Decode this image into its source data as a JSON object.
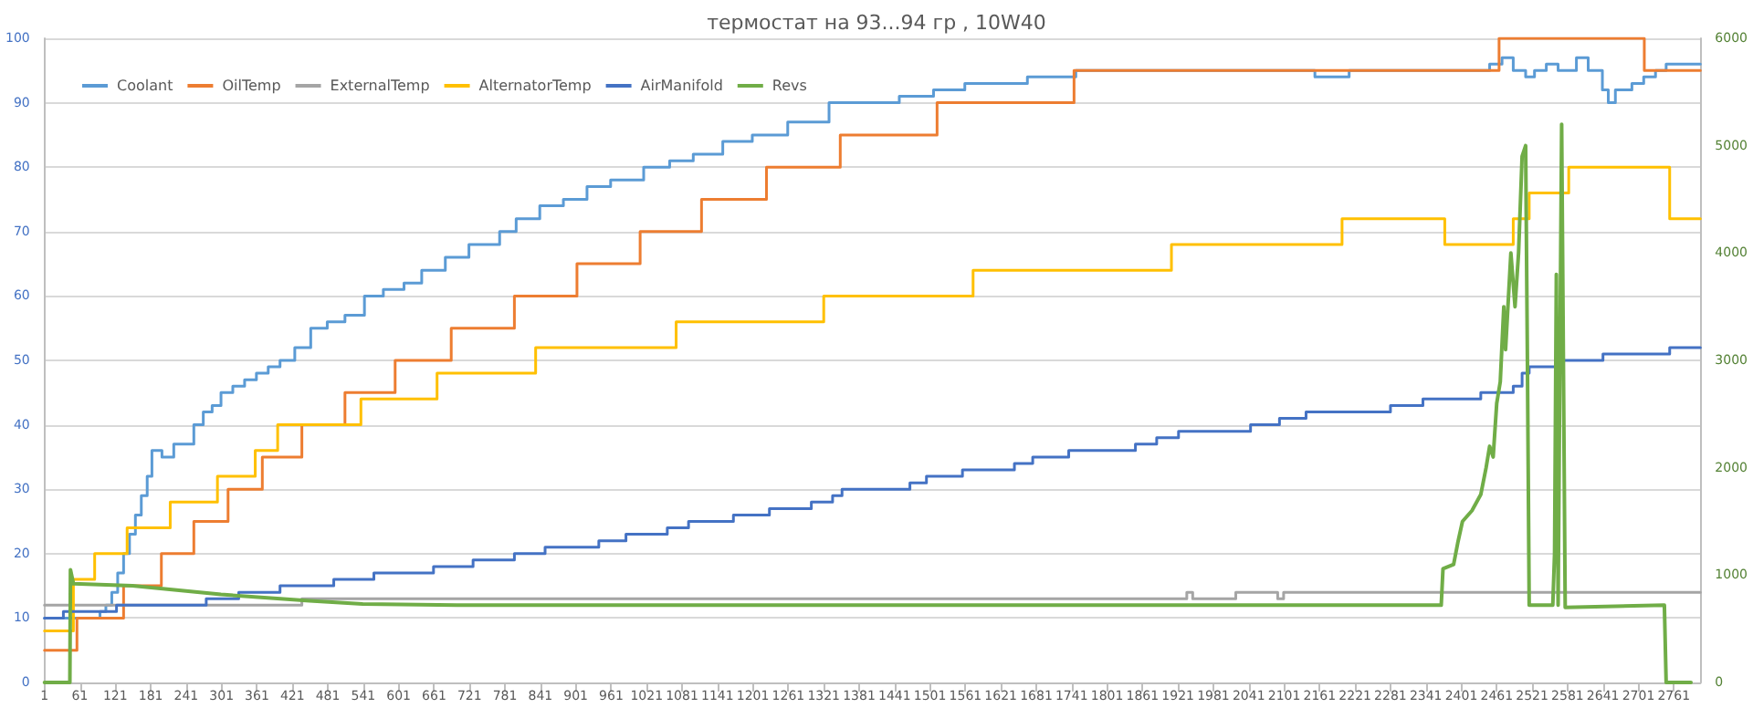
{
  "chart_data": {
    "type": "step",
    "title": "термостат на 93...94 гр , 10W40",
    "xlim": [
      1,
      2806
    ],
    "xticks": [
      1,
      61,
      121,
      181,
      241,
      301,
      361,
      421,
      481,
      541,
      601,
      661,
      721,
      781,
      841,
      901,
      961,
      1021,
      1081,
      1141,
      1201,
      1261,
      1321,
      1381,
      1441,
      1501,
      1561,
      1621,
      1681,
      1741,
      1801,
      1861,
      1921,
      1981,
      2041,
      2101,
      2161,
      2221,
      2281,
      2341,
      2401,
      2461,
      2521,
      2581,
      2641,
      2701,
      2761
    ],
    "ylim": [
      0,
      100
    ],
    "yticks": [
      0,
      10,
      20,
      30,
      40,
      50,
      60,
      70,
      80,
      90,
      100
    ],
    "y2lim": [
      0,
      6000
    ],
    "y2ticks": [
      0,
      1000,
      2000,
      3000,
      4000,
      5000,
      6000
    ],
    "grid": "y",
    "legend": "top left",
    "marker": "none",
    "line_style": "solid",
    "series": [
      {
        "name": "Coolant",
        "color": "#5b9bd5",
        "x": [
          1,
          95,
          105,
          115,
          125,
          135,
          145,
          155,
          165,
          175,
          183,
          200,
          220,
          254,
          270,
          285,
          300,
          320,
          340,
          360,
          380,
          400,
          425,
          452,
          480,
          510,
          543,
          575,
          610,
          640,
          680,
          720,
          772,
          800,
          840,
          880,
          920,
          960,
          1016,
          1060,
          1100,
          1150,
          1200,
          1260,
          1330,
          1449,
          1507,
          1560,
          1666,
          1748,
          2153,
          2211,
          2449,
          2470,
          2489,
          2510,
          2525,
          2545,
          2565,
          2596,
          2616,
          2640,
          2650,
          2662,
          2690,
          2710,
          2730,
          2748,
          2806
        ],
        "values": [
          10,
          11,
          12,
          14,
          17,
          20,
          23,
          26,
          29,
          32,
          36,
          35,
          37,
          40,
          42,
          43,
          45,
          46,
          47,
          48,
          49,
          50,
          52,
          55,
          56,
          57,
          60,
          61,
          62,
          64,
          66,
          68,
          70,
          72,
          74,
          75,
          77,
          78,
          80,
          81,
          82,
          84,
          85,
          87,
          90,
          91,
          92,
          93,
          94,
          95,
          94,
          95,
          96,
          97,
          95,
          94,
          95,
          96,
          95,
          97,
          95,
          92,
          90,
          92,
          93,
          94,
          95,
          96,
          96
        ]
      },
      {
        "name": "OilTemp",
        "color": "#ed7d31",
        "x": [
          1,
          56,
          135,
          199,
          254,
          312,
          370,
          437,
          510,
          595,
          690,
          797,
          903,
          1010,
          1114,
          1224,
          1349,
          1513,
          1745,
          2465,
          2711,
          2806
        ],
        "values": [
          5,
          10,
          15,
          20,
          25,
          30,
          35,
          40,
          45,
          50,
          55,
          60,
          65,
          70,
          75,
          80,
          85,
          90,
          95,
          100,
          95,
          95
        ]
      },
      {
        "name": "ExternalTemp",
        "color": "#a5a5a5",
        "x": [
          1,
          437,
          1936,
          1946,
          2019,
          2090,
          2100,
          2806
        ],
        "values": [
          12,
          13,
          14,
          13,
          14,
          13,
          14,
          14
        ]
      },
      {
        "name": "AlternatorTemp",
        "color": "#ffc000",
        "x": [
          1,
          50,
          86,
          141,
          214,
          294,
          358,
          396,
          537,
          666,
          833,
          1071,
          1321,
          1574,
          1910,
          2199,
          2373,
          2489,
          2516,
          2583,
          2754,
          2806
        ],
        "values": [
          8,
          16,
          20,
          24,
          28,
          32,
          36,
          40,
          44,
          48,
          52,
          56,
          60,
          64,
          68,
          72,
          68,
          72,
          76,
          80,
          72,
          72
        ]
      },
      {
        "name": "AirManifold",
        "color": "#4472c4",
        "x": [
          1,
          33,
          123,
          275,
          330,
          400,
          491,
          559,
          660,
          727,
          797,
          849,
          940,
          986,
          1056,
          1092,
          1168,
          1229,
          1300,
          1336,
          1352,
          1467,
          1495,
          1556,
          1644,
          1675,
          1736,
          1849,
          1885,
          1922,
          2044,
          2093,
          2138,
          2281,
          2336,
          2434,
          2489,
          2504,
          2516,
          2571,
          2641,
          2754,
          2806
        ],
        "values": [
          10,
          11,
          12,
          13,
          14,
          15,
          16,
          17,
          18,
          19,
          20,
          21,
          22,
          23,
          24,
          25,
          26,
          27,
          28,
          29,
          30,
          31,
          32,
          33,
          34,
          35,
          36,
          37,
          38,
          39,
          40,
          41,
          42,
          43,
          44,
          45,
          46,
          48,
          49,
          50,
          51,
          52,
          52
        ]
      },
      {
        "name": "Revs",
        "color": "#70ad47",
        "type": "line",
        "axis": "y2",
        "x": [
          1,
          44,
          45,
          50,
          150,
          300,
          450,
          540,
          700,
          2367,
          2370,
          2388,
          2395,
          2403,
          2419,
          2434,
          2443,
          2449,
          2455,
          2461,
          2467,
          2473,
          2476,
          2485,
          2492,
          2498,
          2504,
          2510,
          2513,
          2516,
          2556,
          2559,
          2562,
          2565,
          2571,
          2577,
          2745,
          2748,
          2790
        ],
        "values": [
          0,
          0,
          1050,
          920,
          900,
          820,
          760,
          730,
          720,
          720,
          1060,
          1100,
          1300,
          1500,
          1600,
          1750,
          2000,
          2200,
          2100,
          2600,
          2800,
          3500,
          3100,
          4000,
          3500,
          4000,
          4900,
          5000,
          3000,
          720,
          720,
          1200,
          3800,
          720,
          5200,
          700,
          720,
          0,
          0
        ]
      }
    ]
  }
}
